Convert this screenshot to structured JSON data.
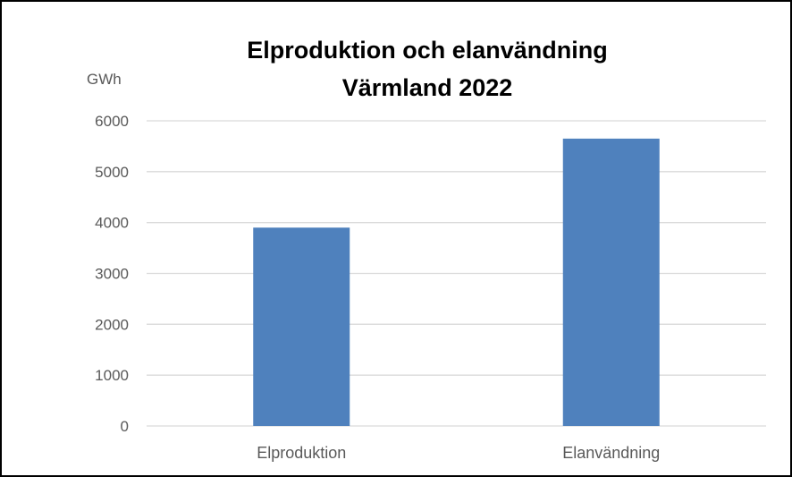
{
  "chart_data": {
    "type": "bar",
    "title": [
      "Elproduktion och elanvändning",
      "Värmland 2022"
    ],
    "ylabel": "GWh",
    "xlabel": "",
    "categories": [
      "Elproduktion",
      "Elanvändning"
    ],
    "values": [
      3900,
      5650
    ],
    "ylim": [
      0,
      6000
    ],
    "yticks": [
      0,
      1000,
      2000,
      3000,
      4000,
      5000,
      6000
    ],
    "grid": true,
    "legend": "none",
    "colors": {
      "bar": "#4F81BD",
      "grid": "#D9D9D9",
      "text": "#595959",
      "title": "#000000"
    }
  }
}
